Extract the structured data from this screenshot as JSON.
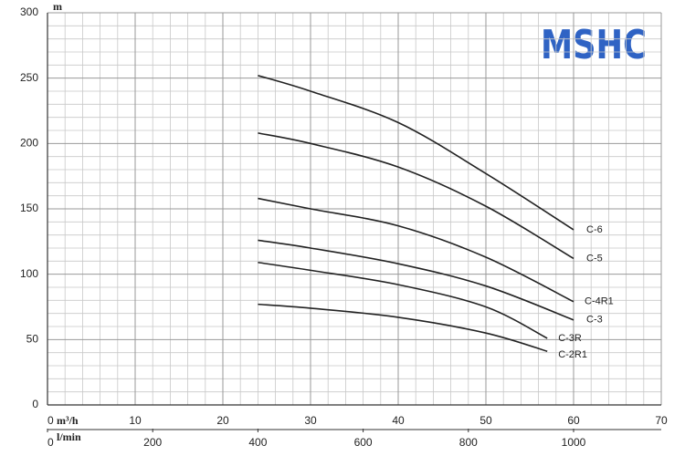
{
  "chart_data": {
    "type": "line",
    "y_label": "m",
    "x_label": "m³/h",
    "x2_label": "l/min",
    "logo": "MSHC",
    "xlim": [
      0,
      70
    ],
    "xticks": [
      0,
      10,
      20,
      30,
      40,
      50,
      60,
      70
    ],
    "x2lim": [
      0,
      1166.67
    ],
    "x2ticks": [
      0,
      200,
      400,
      600,
      800,
      1000
    ],
    "ylim": [
      0,
      300
    ],
    "yticks": [
      0,
      50,
      100,
      150,
      200,
      250,
      300
    ],
    "grid": true,
    "series": [
      {
        "name": "C-6",
        "color": "#222222",
        "x": [
          24,
          30,
          40,
          50,
          60
        ],
        "values": [
          252,
          240,
          216,
          177,
          134
        ]
      },
      {
        "name": "C-5",
        "color": "#222222",
        "x": [
          24,
          30,
          40,
          50,
          60
        ],
        "values": [
          208,
          200,
          182,
          152,
          112
        ]
      },
      {
        "name": "C-4R1",
        "color": "#222222",
        "x": [
          24,
          30,
          40,
          50,
          60
        ],
        "values": [
          158,
          150,
          137,
          113,
          79
        ]
      },
      {
        "name": "C-3",
        "color": "#222222",
        "x": [
          24,
          30,
          40,
          50,
          60
        ],
        "values": [
          126,
          120,
          108,
          91,
          65
        ]
      },
      {
        "name": "C-3R",
        "color": "#222222",
        "x": [
          24,
          30,
          40,
          50,
          57
        ],
        "values": [
          109,
          103,
          92,
          75,
          51
        ]
      },
      {
        "name": "C-2R1",
        "color": "#222222",
        "x": [
          24,
          30,
          40,
          50,
          57
        ],
        "values": [
          77,
          74,
          67,
          55,
          41
        ]
      }
    ]
  }
}
